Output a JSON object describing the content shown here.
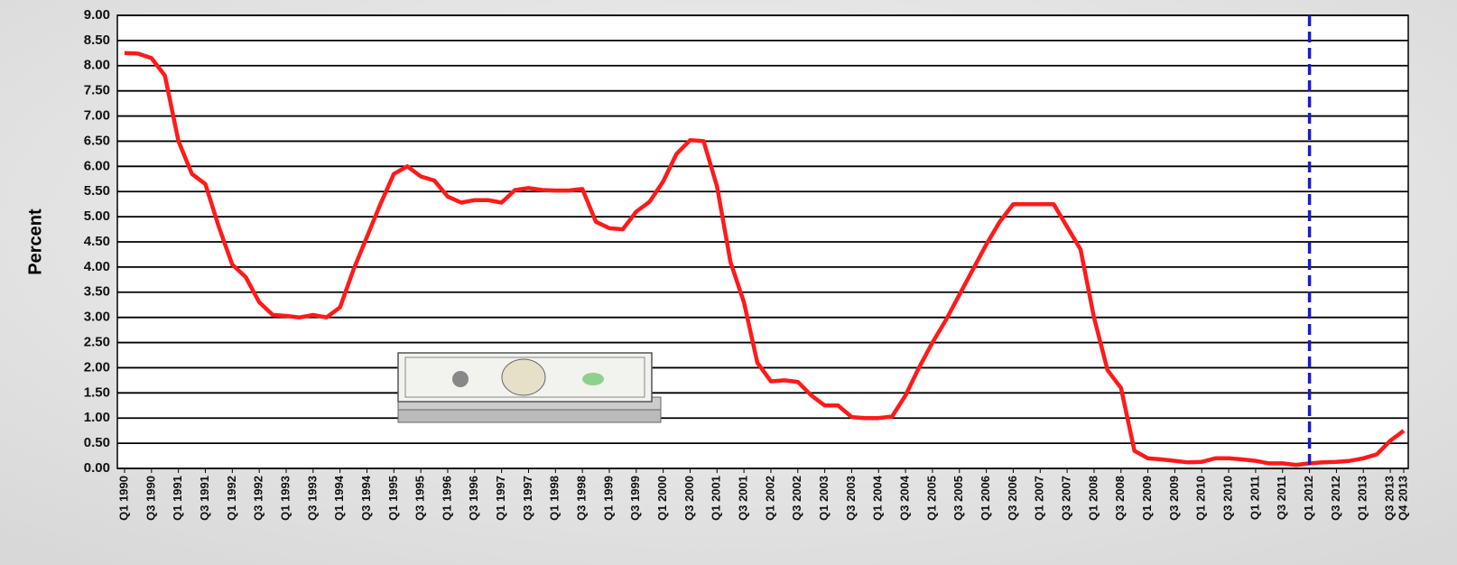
{
  "chart_data": {
    "type": "line",
    "y_label": "Percent",
    "categories": [
      "Q1 1990",
      null,
      "Q3 1990",
      null,
      "Q1 1991",
      null,
      "Q3 1991",
      null,
      "Q1 1992",
      null,
      "Q3 1992",
      null,
      "Q1 1993",
      null,
      "Q3 1993",
      null,
      "Q1 1994",
      null,
      "Q3 1994",
      null,
      "Q1 1995",
      null,
      "Q3 1995",
      null,
      "Q1 1996",
      null,
      "Q3 1996",
      null,
      "Q1 1997",
      null,
      "Q3 1997",
      null,
      "Q1 1998",
      null,
      "Q3 1998",
      null,
      "Q1 1999",
      null,
      "Q3 1999",
      null,
      "Q1 2000",
      null,
      "Q3 2000",
      null,
      "Q1 2001",
      null,
      "Q3 2001",
      null,
      "Q1 2002",
      null,
      "Q3 2002",
      null,
      "Q1 2003",
      null,
      "Q3 2003",
      null,
      "Q1 2004",
      null,
      "Q3 2004",
      null,
      "Q1 2005",
      null,
      "Q3 2005",
      null,
      "Q1 2006",
      null,
      "Q3 2006",
      null,
      "Q1 2007",
      null,
      "Q3 2007",
      null,
      "Q1 2008",
      null,
      "Q3 2008",
      null,
      "Q1 2009",
      null,
      "Q3 2009",
      null,
      "Q1 2010",
      null,
      "Q3 2010",
      null,
      "Q1 2011",
      null,
      "Q3 2011",
      null,
      "Q1 2012",
      null,
      "Q3 2012",
      null,
      "Q1 2013",
      null,
      "Q3 2013",
      "Q4 2013"
    ],
    "series": [
      {
        "color": "#ff1a1a",
        "values": [
          8.25,
          8.24,
          8.15,
          7.8,
          6.5,
          5.85,
          5.65,
          4.8,
          4.05,
          3.8,
          3.3,
          3.05,
          3.03,
          3.0,
          3.05,
          3.0,
          3.2,
          3.95,
          4.6,
          5.25,
          5.85,
          6.0,
          5.8,
          5.72,
          5.4,
          5.28,
          5.33,
          5.33,
          5.28,
          5.53,
          5.57,
          5.53,
          5.52,
          5.52,
          5.55,
          4.9,
          4.77,
          4.75,
          5.1,
          5.3,
          5.7,
          6.25,
          6.52,
          6.5,
          5.6,
          4.1,
          3.3,
          2.1,
          1.73,
          1.75,
          1.72,
          1.45,
          1.25,
          1.25,
          1.02,
          1.0,
          1.0,
          1.03,
          1.45,
          2.0,
          2.5,
          2.95,
          3.45,
          3.95,
          4.45,
          4.9,
          5.25,
          5.25,
          5.25,
          5.25,
          4.8,
          4.35,
          3.0,
          1.95,
          1.6,
          0.35,
          0.2,
          0.18,
          0.15,
          0.12,
          0.13,
          0.2,
          0.2,
          0.18,
          0.15,
          0.1,
          0.1,
          0.07,
          0.1,
          0.12,
          0.13,
          0.15,
          0.2,
          0.28,
          0.55,
          0.75
        ]
      }
    ],
    "ylim": [
      0,
      9
    ],
    "yticks": [
      {
        "value": 0,
        "label": "0.00"
      },
      {
        "value": 0.5,
        "label": "0.50"
      },
      {
        "value": 1,
        "label": "1.00"
      },
      {
        "value": 1.5,
        "label": "1.50"
      },
      {
        "value": 2,
        "label": "2.00"
      },
      {
        "value": 2.5,
        "label": "2.50"
      },
      {
        "value": 3,
        "label": "3.00"
      },
      {
        "value": 3.5,
        "label": "3.50"
      },
      {
        "value": 4,
        "label": "4.00"
      },
      {
        "value": 4.5,
        "label": "4.50"
      },
      {
        "value": 5,
        "label": "5.00"
      },
      {
        "value": 5.5,
        "label": "5.50"
      },
      {
        "value": 6,
        "label": "6.00"
      },
      {
        "value": 6.5,
        "label": "6.50"
      },
      {
        "value": 7,
        "label": "7.00"
      },
      {
        "value": 7.5,
        "label": "7.50"
      },
      {
        "value": 8,
        "label": "8.00"
      },
      {
        "value": 8.5,
        "label": "8.50"
      },
      {
        "value": 9,
        "label": "9.00"
      }
    ],
    "grid": true,
    "vline": {
      "category_index": 88,
      "color": "#1a1acc"
    }
  }
}
